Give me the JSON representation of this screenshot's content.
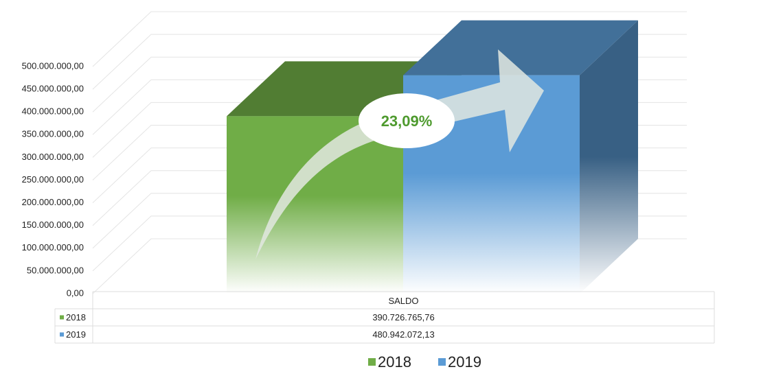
{
  "chart_data": {
    "type": "bar3d",
    "annotation": "23,09%",
    "categories": [
      "SALDO"
    ],
    "series": [
      {
        "name": "2018",
        "color": "#70ad47",
        "values": [
          390726765.76
        ],
        "value_labels": [
          "390.726.765,76"
        ]
      },
      {
        "name": "2019",
        "color": "#5b9bd5",
        "values": [
          480942072.13
        ],
        "value_labels": [
          "480.942.072,13"
        ]
      }
    ],
    "ylim": [
      0,
      500000000
    ],
    "yticks": [
      {
        "value": 0,
        "label": "0,00"
      },
      {
        "value": 50000000,
        "label": "50.000.000,00"
      },
      {
        "value": 100000000,
        "label": "100.000.000,00"
      },
      {
        "value": 150000000,
        "label": "150.000.000,00"
      },
      {
        "value": 200000000,
        "label": "200.000.000,00"
      },
      {
        "value": 250000000,
        "label": "250.000.000,00"
      },
      {
        "value": 300000000,
        "label": "300.000.000,00"
      },
      {
        "value": 350000000,
        "label": "350.000.000,00"
      },
      {
        "value": 400000000,
        "label": "400.000.000,00"
      },
      {
        "value": 450000000,
        "label": "450.000.000,00"
      },
      {
        "value": 500000000,
        "label": "500.000.000,00"
      }
    ],
    "grid": true,
    "data_table": true,
    "legend": "bottom"
  }
}
